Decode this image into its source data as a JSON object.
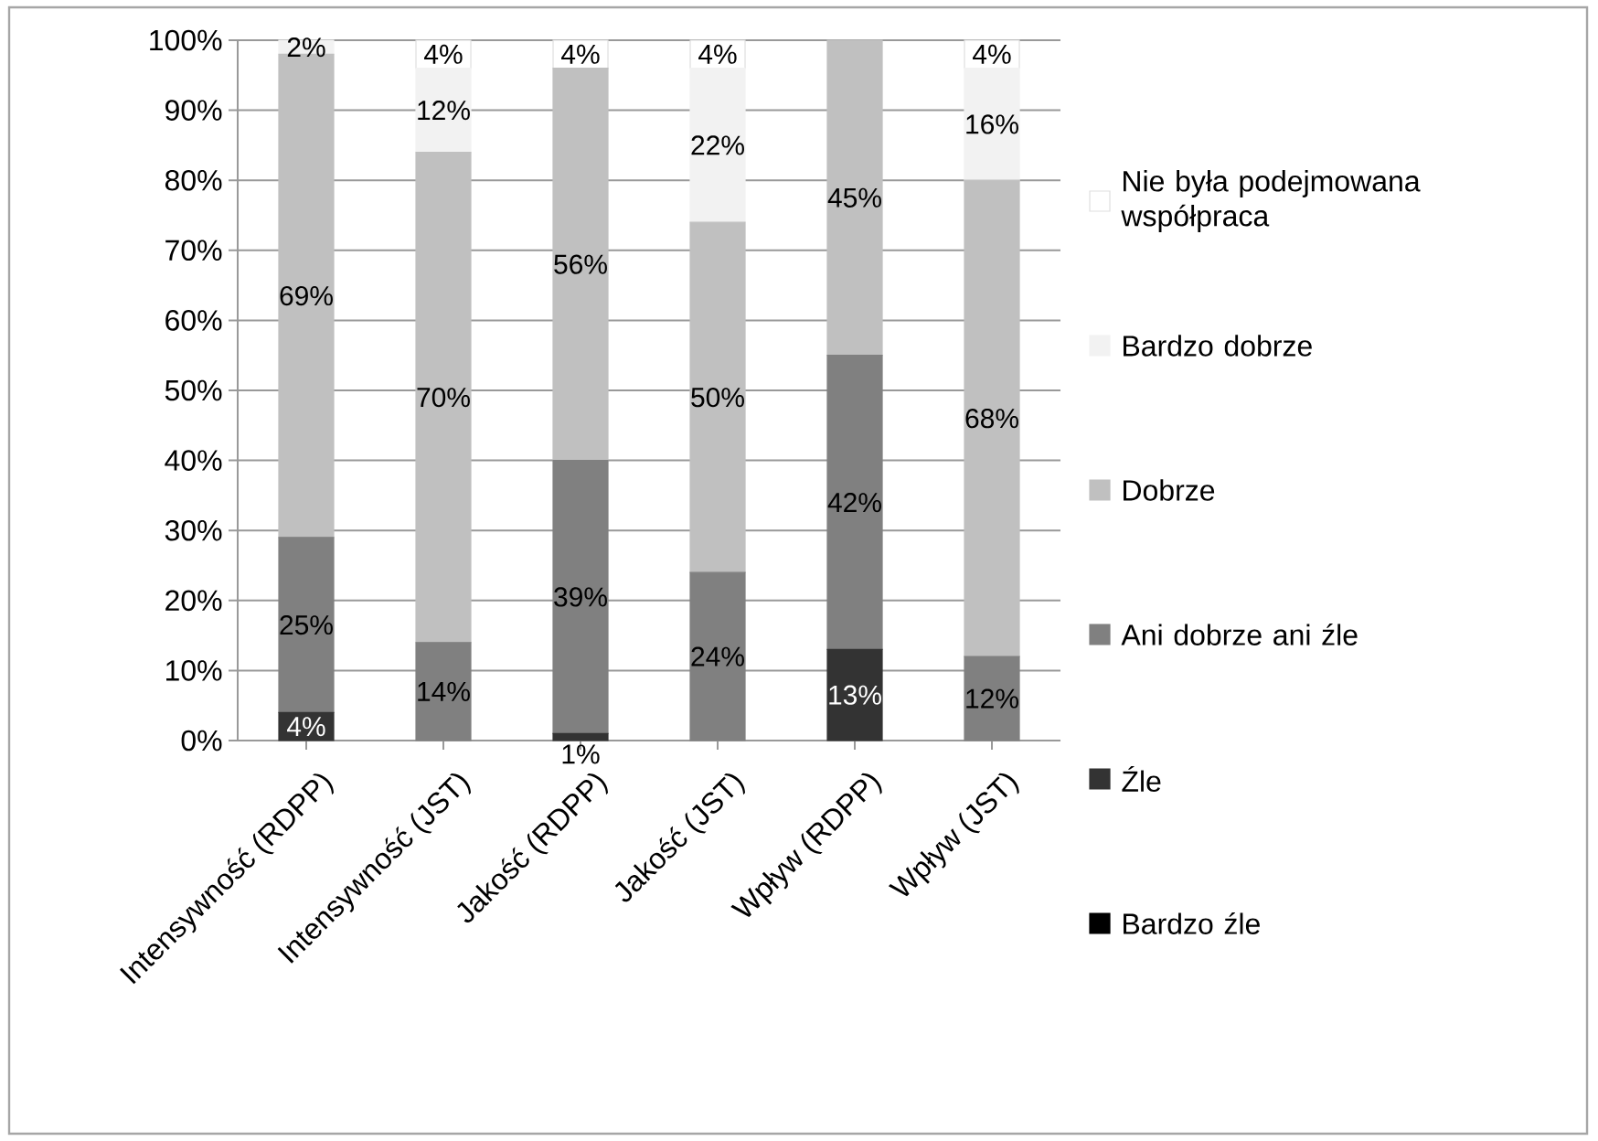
{
  "chart_data": {
    "type": "bar",
    "stacked": true,
    "categories": [
      "Intensywność (RDPP)",
      "Intensywność (JST)",
      "Jakość (RDPP)",
      "Jakość (JST)",
      "Wpływ (RDPP)",
      "Wpływ (JST)"
    ],
    "series": [
      {
        "name": "Bardzo źle",
        "color": "#000000",
        "values": [
          0,
          0,
          0,
          0,
          0,
          0
        ],
        "value_labels": [
          null,
          null,
          null,
          null,
          null,
          null
        ]
      },
      {
        "name": "Źle",
        "color": "#333333",
        "values": [
          4,
          0,
          1,
          0,
          13,
          0
        ],
        "value_labels": [
          "4%",
          null,
          "1%",
          null,
          "13%",
          null
        ]
      },
      {
        "name": "Ani dobrze ani źle",
        "color": "#808080",
        "values": [
          25,
          14,
          39,
          24,
          42,
          12
        ],
        "value_labels": [
          "25%",
          "14%",
          "39%",
          "24%",
          "42%",
          "12%"
        ]
      },
      {
        "name": "Dobrze",
        "color": "#c0c0c0",
        "values": [
          69,
          70,
          56,
          50,
          45,
          68
        ],
        "value_labels": [
          "69%",
          "70%",
          "56%",
          "50%",
          "45%",
          "68%"
        ]
      },
      {
        "name": "Bardzo dobrze",
        "color": "#f2f2f2",
        "values": [
          2,
          12,
          0,
          22,
          0,
          16
        ],
        "value_labels": [
          "2%",
          "12%",
          null,
          "22%",
          null,
          "16%"
        ]
      },
      {
        "name": "Nie była podejmowana współpraca",
        "color": "#ffffff",
        "values": [
          0,
          4,
          4,
          4,
          0,
          4
        ],
        "value_labels": [
          null,
          "4%",
          "4%",
          "4%",
          null,
          "4%"
        ]
      }
    ],
    "ylim": [
      0,
      100
    ],
    "yticks": [
      {
        "value": 0,
        "label": "0%"
      },
      {
        "value": 10,
        "label": "10%"
      },
      {
        "value": 20,
        "label": "20%"
      },
      {
        "value": 30,
        "label": "30%"
      },
      {
        "value": 40,
        "label": "40%"
      },
      {
        "value": 50,
        "label": "50%"
      },
      {
        "value": 60,
        "label": "60%"
      },
      {
        "value": 70,
        "label": "70%"
      },
      {
        "value": 80,
        "label": "80%"
      },
      {
        "value": 90,
        "label": "90%"
      },
      {
        "value": 100,
        "label": "100%"
      }
    ],
    "grid": "y",
    "legend": "right"
  }
}
